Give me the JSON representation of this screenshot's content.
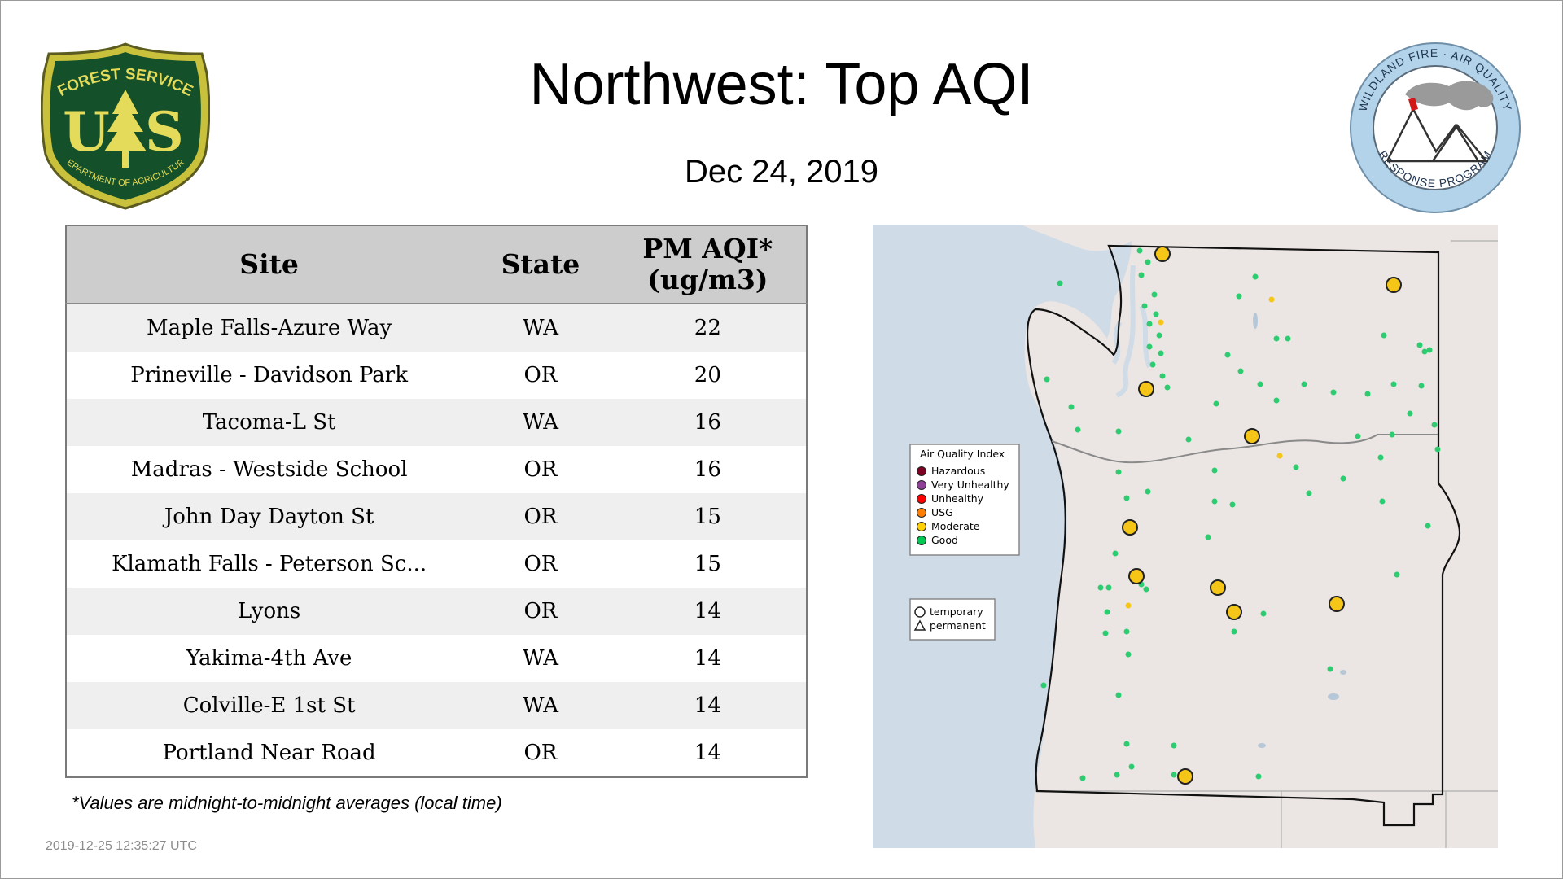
{
  "header": {
    "title": "Northwest: Top AQI",
    "date": "Dec 24, 2019"
  },
  "logos": {
    "usfs": {
      "top_text": "FOREST SERVICE",
      "letters_left": "U",
      "letters_right": "S",
      "bottom_text": "DEPARTMENT OF AGRICULTURE"
    },
    "wfaq": {
      "top_text": "WILDLAND FIRE · AIR QUALITY",
      "bottom_text": "RESPONSE PROGRAM"
    }
  },
  "table": {
    "headers": {
      "site": "Site",
      "state": "State",
      "aqi_line1": "PM AQI*",
      "aqi_line2": "(ug/m3)"
    },
    "rows": [
      {
        "site": "Maple Falls-Azure Way",
        "state": "WA",
        "aqi": "22"
      },
      {
        "site": "Prineville - Davidson Park",
        "state": "OR",
        "aqi": "20"
      },
      {
        "site": "Tacoma-L St",
        "state": "WA",
        "aqi": "16"
      },
      {
        "site": "Madras - Westside School",
        "state": "OR",
        "aqi": "16"
      },
      {
        "site": "John Day Dayton St",
        "state": "OR",
        "aqi": "15"
      },
      {
        "site": "Klamath Falls - Peterson Sc...",
        "state": "OR",
        "aqi": "15"
      },
      {
        "site": "Lyons",
        "state": "OR",
        "aqi": "14"
      },
      {
        "site": "Yakima-4th Ave",
        "state": "WA",
        "aqi": "14"
      },
      {
        "site": "Colville-E 1st St",
        "state": "WA",
        "aqi": "14"
      },
      {
        "site": "Portland Near Road",
        "state": "OR",
        "aqi": "14"
      }
    ]
  },
  "footnote": "*Values are midnight-to-midnight averages (local time)",
  "timestamp": "2019-12-25 12:35:27 UTC",
  "map": {
    "legend": {
      "title": "Air Quality Index",
      "categories": [
        {
          "label": "Hazardous",
          "color": "#7e0023"
        },
        {
          "label": "Very Unhealthy",
          "color": "#8f3f97"
        },
        {
          "label": "Unhealthy",
          "color": "#ff0000"
        },
        {
          "label": "USG",
          "color": "#ff7e00"
        },
        {
          "label": "Moderate",
          "color": "#ffd000"
        },
        {
          "label": "Good",
          "color": "#00c853"
        }
      ],
      "shapes": [
        {
          "label": "temporary",
          "shape": "circle"
        },
        {
          "label": "permanent",
          "shape": "triangle"
        }
      ]
    },
    "colors": {
      "water": "#cfdbe6",
      "land": "#ebe6e3",
      "good": "#2ecc71",
      "moderate": "#f5c518"
    }
  }
}
